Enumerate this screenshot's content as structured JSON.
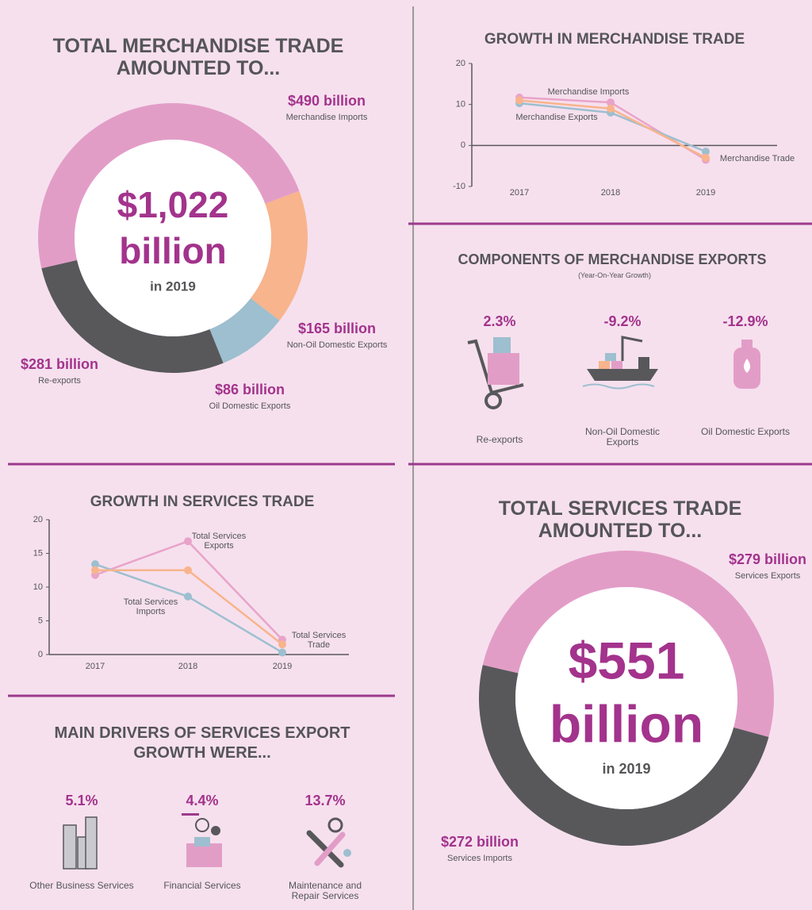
{
  "chart_data": [
    {
      "type": "donut",
      "title": "TOTAL MERCHANDISE TRADE AMOUNTED TO...",
      "center_value": "$1,022",
      "center_unit": "billion",
      "center_note": "in 2019",
      "categories": [
        "Merchandise Imports",
        "Non-Oil Domestic Exports",
        "Oil Domestic Exports",
        "Re-exports"
      ],
      "values": [
        490,
        165,
        86,
        281
      ],
      "value_labels": [
        "$490 billion",
        "$165 billion",
        "$86 billion",
        "$281 billion"
      ],
      "colors": [
        "#e29dc7",
        "#f8b48c",
        "#9dbfcf",
        "#58585b"
      ]
    },
    {
      "type": "line",
      "title": "GROWTH IN MERCHANDISE TRADE",
      "categories": [
        "2017",
        "2018",
        "2019"
      ],
      "ylim": [
        -10,
        20
      ],
      "yticks": [
        -10,
        0,
        10,
        20
      ],
      "series": [
        {
          "name": "Merchandise Imports",
          "color": "#e9a3c9",
          "values": [
            11.7,
            10.5,
            -3.5
          ]
        },
        {
          "name": "Merchandise Exports",
          "color": "#9dbfcf",
          "values": [
            10.3,
            8,
            -1.5
          ]
        },
        {
          "name": "Merchandise Trade",
          "color": "#f8b48c",
          "values": [
            11,
            9,
            -3
          ]
        }
      ]
    },
    {
      "type": "line",
      "title": "GROWTH IN SERVICES TRADE",
      "categories": [
        "2017",
        "2018",
        "2019"
      ],
      "ylim": [
        0,
        20
      ],
      "yticks": [
        0,
        5,
        10,
        15,
        20
      ],
      "series": [
        {
          "name": "Total Services Exports",
          "color": "#e9a3c9",
          "values": [
            11.8,
            16.8,
            2.2
          ]
        },
        {
          "name": "Total Services Imports",
          "color": "#9dbfcf",
          "values": [
            13.4,
            8.6,
            0.3
          ]
        },
        {
          "name": "Total Services Trade",
          "color": "#f8b48c",
          "values": [
            12.5,
            12.5,
            1.5
          ]
        }
      ]
    },
    {
      "type": "donut",
      "title": "TOTAL SERVICES TRADE AMOUNTED TO...",
      "center_value": "$551",
      "center_unit": "billion",
      "center_note": "in 2019",
      "categories": [
        "Services Exports",
        "Services Imports"
      ],
      "values": [
        279,
        272
      ],
      "value_labels": [
        "$279 billion",
        "$272 billion"
      ],
      "colors": [
        "#e29dc7",
        "#58585b"
      ]
    }
  ],
  "components": {
    "title": "COMPONENTS OF MERCHANDISE EXPORTS",
    "subtitle": "(Year-On-Year Growth)",
    "items": [
      {
        "value": "2.3%",
        "label": "Re-exports"
      },
      {
        "value": "-9.2%",
        "label": "Non-Oil Domestic Exports"
      },
      {
        "value": "-12.9%",
        "label": "Oil Domestic Exports"
      }
    ]
  },
  "drivers": {
    "title": "MAIN DRIVERS OF SERVICES EXPORT GROWTH WERE...",
    "items": [
      {
        "value": "5.1%",
        "label": "Other Business Services"
      },
      {
        "value": "4.4%",
        "label": "Financial Services"
      },
      {
        "value": "13.7%",
        "label": "Maintenance and Repair Services"
      }
    ]
  }
}
